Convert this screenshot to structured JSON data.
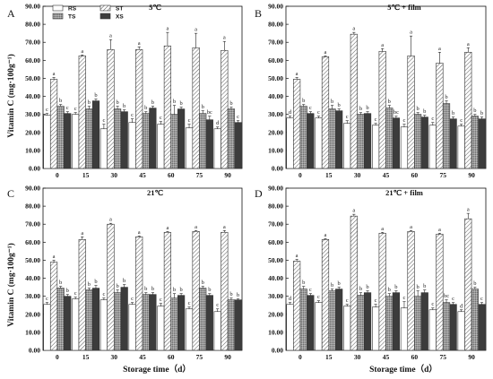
{
  "chart_data": [
    {
      "type": "bar",
      "panel": "A",
      "title": "5℃",
      "xlabel": "",
      "ylabel": "Vitamin C (mg·100g⁻¹)",
      "ylim": [
        0,
        90
      ],
      "yticks": [
        "0.00",
        "10.00",
        "20.00",
        "30.00",
        "40.00",
        "50.00",
        "60.00",
        "70.00",
        "80.00",
        "90.00"
      ],
      "categories": [
        "0",
        "15",
        "30",
        "45",
        "60",
        "75",
        "90"
      ],
      "legend": true,
      "series": [
        {
          "name": "RS",
          "values": [
            29.5,
            30,
            22,
            25.5,
            24.5,
            22.5,
            22
          ],
          "errors": [
            1,
            1,
            2.5,
            2,
            1.5,
            2,
            1
          ],
          "letters": [
            "c",
            "c",
            "c",
            "c",
            "c",
            "c",
            "d"
          ]
        },
        {
          "name": "ST",
          "values": [
            49.5,
            62.5,
            66,
            66,
            68,
            67,
            65.5
          ],
          "errors": [
            1,
            0.5,
            5.5,
            1.5,
            7.5,
            8,
            5
          ],
          "letters": [
            "a",
            "a",
            "a",
            "a",
            "a",
            "a",
            "a"
          ]
        },
        {
          "name": "TS",
          "values": [
            34.5,
            33,
            33,
            30.5,
            30,
            30.5,
            33
          ],
          "errors": [
            1,
            1.5,
            1.5,
            1,
            5,
            1.5,
            1
          ],
          "letters": [
            "b",
            "b",
            "b",
            "b",
            "b",
            "b",
            "b"
          ]
        },
        {
          "name": "XS",
          "values": [
            30.5,
            37.5,
            31.5,
            33.5,
            33,
            27,
            25.5
          ],
          "errors": [
            1,
            1,
            1,
            1,
            1,
            2,
            1
          ],
          "letters": [
            "c",
            "b",
            "b",
            "b",
            "b",
            "bc",
            "c"
          ]
        }
      ]
    },
    {
      "type": "bar",
      "panel": "B",
      "title": "5℃ + film",
      "xlabel": "",
      "ylabel": "",
      "ylim": [
        0,
        90
      ],
      "yticks": [
        "0.00",
        "10.00",
        "20.00",
        "30.00",
        "40.00",
        "50.00",
        "60.00",
        "70.00",
        "80.00",
        "90.00"
      ],
      "categories": [
        "0",
        "15",
        "30",
        "45",
        "60",
        "75",
        "90"
      ],
      "legend": false,
      "series": [
        {
          "name": "RS",
          "values": [
            28,
            28,
            25,
            24,
            23,
            24,
            23.5
          ],
          "errors": [
            1,
            1,
            1.5,
            1,
            1.5,
            1.5,
            1
          ],
          "letters": [
            "d",
            "c",
            "c",
            "c",
            "c",
            "c",
            "c"
          ]
        },
        {
          "name": "ST",
          "values": [
            49.5,
            62,
            74.5,
            65,
            62.5,
            58.5,
            64.5
          ],
          "errors": [
            1,
            0.5,
            1,
            1.5,
            11,
            6,
            2.5
          ],
          "letters": [
            "a",
            "a",
            "a",
            "a",
            "a",
            "a",
            "a"
          ]
        },
        {
          "name": "TS",
          "values": [
            34.5,
            33,
            30,
            33.5,
            30,
            36,
            29
          ],
          "errors": [
            1,
            2,
            1,
            1.5,
            1,
            1.5,
            1
          ],
          "letters": [
            "b",
            "b",
            "b",
            "b",
            "b",
            "b",
            "b"
          ]
        },
        {
          "name": "XS",
          "values": [
            30.5,
            32,
            30.5,
            28,
            28.5,
            27.5,
            27.5
          ],
          "errors": [
            1,
            1,
            1,
            1,
            1,
            1,
            1
          ],
          "letters": [
            "c",
            "b",
            "b",
            "bc",
            "b",
            "b",
            "b"
          ]
        }
      ]
    },
    {
      "type": "bar",
      "panel": "C",
      "title": "21℃",
      "xlabel": "Storage time（d）",
      "ylabel": "Vitamin C (mg·100g⁻¹)",
      "ylim": [
        0,
        90
      ],
      "yticks": [
        "0.00",
        "10.00",
        "20.00",
        "30.00",
        "40.00",
        "50.00",
        "60.00",
        "70.00",
        "80.00",
        "90.00"
      ],
      "categories": [
        "0",
        "15",
        "30",
        "45",
        "60",
        "75",
        "90"
      ],
      "legend": false,
      "series": [
        {
          "name": "RS",
          "values": [
            25.5,
            28.5,
            28,
            25.5,
            24.5,
            23,
            21.5
          ],
          "errors": [
            1,
            1,
            1,
            1,
            1.5,
            1,
            1.5
          ],
          "letters": [
            "c",
            "c",
            "c",
            "c",
            "c",
            "c",
            "c"
          ]
        },
        {
          "name": "ST",
          "values": [
            49,
            61.5,
            70,
            63,
            65.5,
            66,
            65.5
          ],
          "errors": [
            1,
            1.5,
            0.5,
            0.5,
            0.5,
            0.5,
            1
          ],
          "letters": [
            "a",
            "a",
            "a",
            "a",
            "a",
            "a",
            "a"
          ]
        },
        {
          "name": "TS",
          "values": [
            34.5,
            33.5,
            32,
            31,
            29,
            34.5,
            28
          ],
          "errors": [
            1,
            1,
            1.5,
            1,
            2.5,
            1,
            1
          ],
          "letters": [
            "b",
            "b",
            "b",
            "b",
            "b",
            "b",
            "b"
          ]
        },
        {
          "name": "XS",
          "values": [
            30,
            34.5,
            35,
            31,
            30.5,
            30.5,
            28
          ],
          "errors": [
            1,
            1.5,
            1.5,
            1,
            1,
            1,
            0.5
          ],
          "letters": [
            "b",
            "b",
            "b",
            "b",
            "b",
            "b",
            "b"
          ]
        }
      ]
    },
    {
      "type": "bar",
      "panel": "D",
      "title": "21℃ + film",
      "xlabel": "Storage time（d）",
      "ylabel": "",
      "ylim": [
        0,
        90
      ],
      "yticks": [
        "0.00",
        "10.00",
        "20.00",
        "30.00",
        "40.00",
        "50.00",
        "60.00",
        "70.00",
        "80.00",
        "90.00"
      ],
      "categories": [
        "0",
        "15",
        "30",
        "45",
        "60",
        "75",
        "90"
      ],
      "legend": false,
      "series": [
        {
          "name": "RS",
          "values": [
            25.5,
            26.5,
            24.5,
            24,
            23.5,
            22.5,
            21.5
          ],
          "errors": [
            1,
            1,
            1,
            1.5,
            3.5,
            1,
            1
          ],
          "letters": [
            "d",
            "c",
            "c",
            "c",
            "c",
            "c",
            "d"
          ]
        },
        {
          "name": "ST",
          "values": [
            49.5,
            61.5,
            74.5,
            65,
            66,
            64.5,
            73
          ],
          "errors": [
            1,
            0.5,
            1,
            0.5,
            0.5,
            0.5,
            3
          ],
          "letters": [
            "a",
            "a",
            "a",
            "a",
            "a",
            "a",
            "a"
          ]
        },
        {
          "name": "TS",
          "values": [
            34,
            33,
            30.5,
            30,
            30,
            26.5,
            34
          ],
          "errors": [
            1.5,
            1,
            1.5,
            1.5,
            3,
            1.5,
            1
          ],
          "letters": [
            "b",
            "b",
            "b",
            "b",
            "b",
            "bc",
            "b"
          ]
        },
        {
          "name": "XS",
          "values": [
            30.5,
            34,
            32,
            32,
            32,
            25.5,
            25.5
          ],
          "errors": [
            1,
            1,
            1,
            1,
            1.5,
            1,
            1
          ],
          "letters": [
            "c",
            "b",
            "b",
            "b",
            "b",
            "c",
            "c"
          ]
        }
      ]
    }
  ]
}
